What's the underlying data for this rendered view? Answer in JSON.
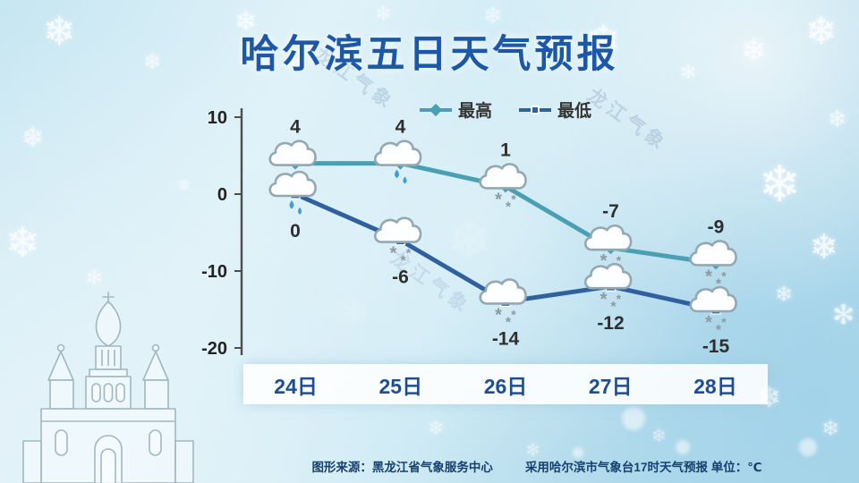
{
  "title": "哈尔滨五日天气预报",
  "watermark": "龙江气象",
  "colors": {
    "title_blue": "#1c57a8",
    "high_line": "#49a0b5",
    "low_line": "#30609f",
    "x_label_blue": "#1d4e94",
    "rain_drop": "#3da0dc",
    "snow_flake": "#8b9aa3"
  },
  "chart_data": {
    "type": "line",
    "categories": [
      "24日",
      "25日",
      "26日",
      "27日",
      "28日"
    ],
    "series": [
      {
        "name": "最高",
        "values": [
          4,
          4,
          1,
          -7,
          -9
        ],
        "color": "#49a0b5",
        "marker": "diamond",
        "icons": [
          "cloud",
          "rain",
          "snow",
          "snow",
          "snow"
        ]
      },
      {
        "name": "最低",
        "values": [
          0,
          -6,
          -14,
          -12,
          -15
        ],
        "color": "#30609f",
        "marker": "square",
        "icons": [
          "rain",
          "snow",
          "snow",
          "snow",
          "snow"
        ]
      }
    ],
    "ylim": [
      -20,
      10
    ],
    "yticks": [
      10,
      0,
      -10,
      -20
    ],
    "unit": "℃",
    "grid": false,
    "legend_position": "top"
  },
  "footer": {
    "source": "图形来源：黑龙江省气象服务中心",
    "note": "采用哈尔滨市气象台17时天气预报 单位：℃"
  }
}
